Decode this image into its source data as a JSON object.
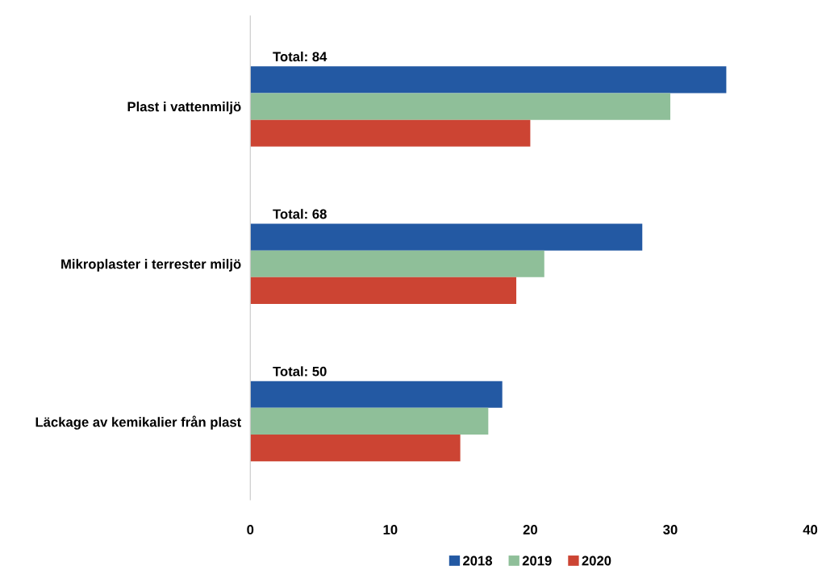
{
  "chart_data": {
    "type": "bar",
    "orientation": "horizontal",
    "categories": [
      "Plast i vattenmiljö",
      "Mikroplaster i terrester miljö",
      "Läckage av kemikalier från plast"
    ],
    "series": [
      {
        "name": "2018",
        "color": "#2359a3",
        "values": [
          34,
          28,
          18
        ]
      },
      {
        "name": "2019",
        "color": "#8fbf99",
        "values": [
          30,
          21,
          17
        ]
      },
      {
        "name": "2020",
        "color": "#cc4433",
        "values": [
          20,
          19,
          15
        ]
      }
    ],
    "totals": [
      "Total: 84",
      "Total: 68",
      "Total: 50"
    ],
    "xlim": [
      0,
      40
    ],
    "xticks": [
      0,
      10,
      20,
      30,
      40
    ],
    "grid": false,
    "legend": "bottom"
  }
}
